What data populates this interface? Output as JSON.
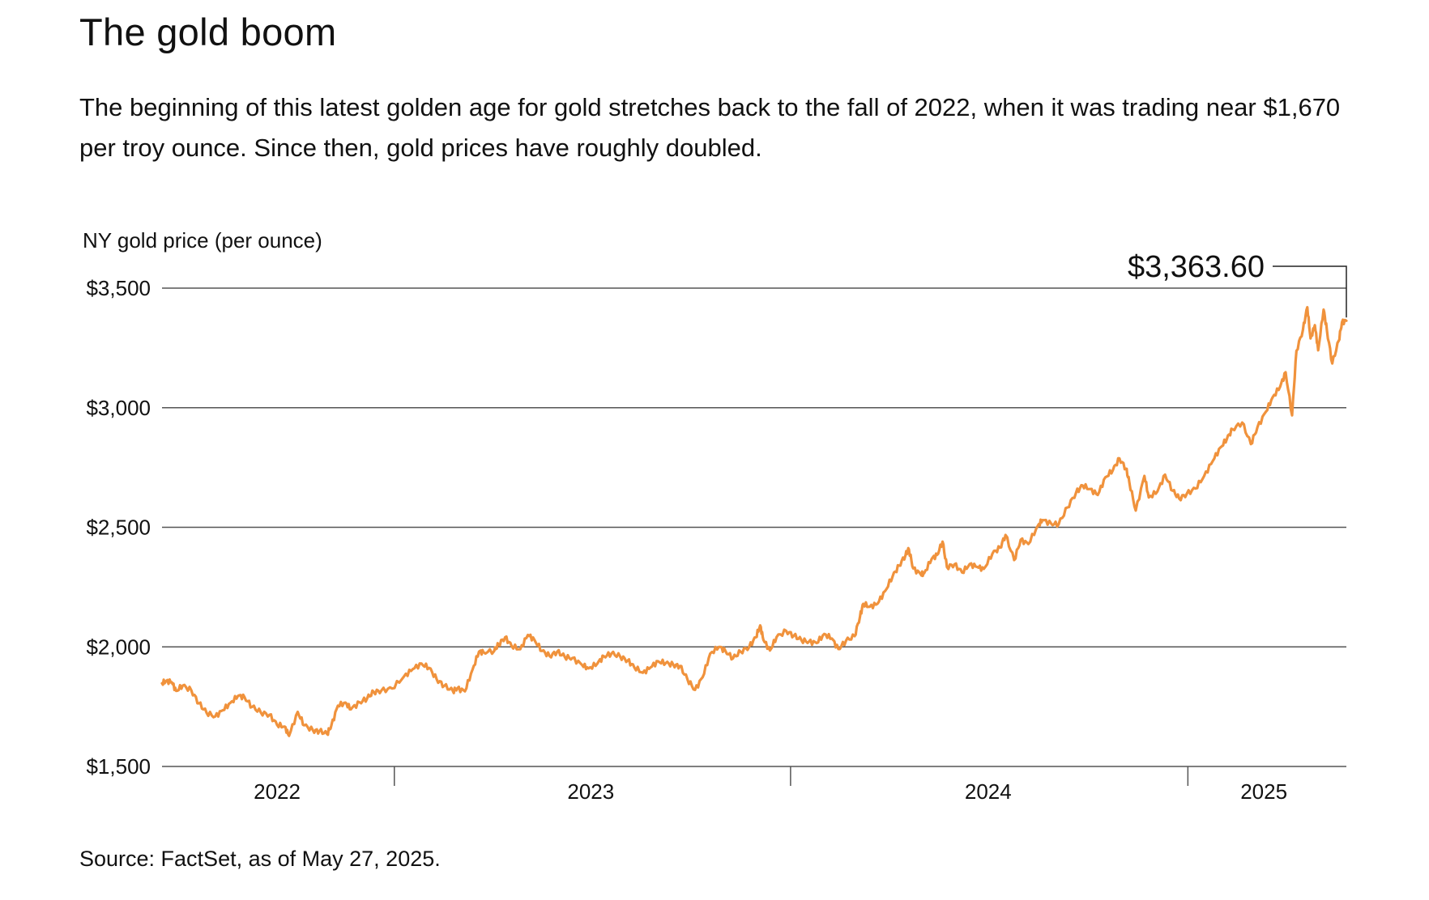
{
  "title": "The gold boom",
  "subtitle": "The beginning of this latest golden age for gold stretches back to the fall of 2022, when it was trading near $1,670 per troy ounce. Since then, gold prices have roughly doubled.",
  "source": "Source: FactSet, as of May 27, 2025.",
  "colors": {
    "line": "#F0923C",
    "grid": "#555555",
    "text": "#111111"
  },
  "chart_data": {
    "type": "line",
    "ylabel": "NY gold price (per ounce)",
    "ylim": [
      1500,
      3500
    ],
    "yticks": [
      {
        "value": 1500,
        "label": "$1,500"
      },
      {
        "value": 2000,
        "label": "$2,000"
      },
      {
        "value": 2500,
        "label": "$2,500"
      },
      {
        "value": 3000,
        "label": "$3,000"
      },
      {
        "value": 3500,
        "label": "$3,500"
      }
    ],
    "xlim": [
      "2022-06-01",
      "2025-05-27"
    ],
    "xticks": [
      {
        "label": "2022",
        "date": "2022-09-15"
      },
      {
        "label": "2023",
        "date": "2023-07-01"
      },
      {
        "label": "2024",
        "date": "2024-07-01"
      },
      {
        "label": "2025",
        "date": "2025-03-12"
      }
    ],
    "year_dividers": [
      "2023-01-01",
      "2024-01-01",
      "2025-01-01"
    ],
    "grid": true,
    "last_value_label": "$3,363.60",
    "series": [
      {
        "points": [
          [
            "2022-06-01",
            1848
          ],
          [
            "2022-06-05",
            1858
          ],
          [
            "2022-06-10",
            1852
          ],
          [
            "2022-06-14",
            1816
          ],
          [
            "2022-06-20",
            1838
          ],
          [
            "2022-06-28",
            1818
          ],
          [
            "2022-07-05",
            1764
          ],
          [
            "2022-07-12",
            1725
          ],
          [
            "2022-07-20",
            1709
          ],
          [
            "2022-07-27",
            1735
          ],
          [
            "2022-08-03",
            1766
          ],
          [
            "2022-08-10",
            1795
          ],
          [
            "2022-08-16",
            1790
          ],
          [
            "2022-08-23",
            1749
          ],
          [
            "2022-08-31",
            1726
          ],
          [
            "2022-09-08",
            1716
          ],
          [
            "2022-09-15",
            1674
          ],
          [
            "2022-09-22",
            1667
          ],
          [
            "2022-09-26",
            1628
          ],
          [
            "2022-10-04",
            1728
          ],
          [
            "2022-10-10",
            1672
          ],
          [
            "2022-10-18",
            1651
          ],
          [
            "2022-10-24",
            1648
          ],
          [
            "2022-10-31",
            1636
          ],
          [
            "2022-11-04",
            1671
          ],
          [
            "2022-11-10",
            1754
          ],
          [
            "2022-11-17",
            1767
          ],
          [
            "2022-11-22",
            1739
          ],
          [
            "2022-11-30",
            1768
          ],
          [
            "2022-12-07",
            1785
          ],
          [
            "2022-12-13",
            1812
          ],
          [
            "2022-12-20",
            1817
          ],
          [
            "2022-12-30",
            1826
          ],
          [
            "2023-01-10",
            1877
          ],
          [
            "2023-01-18",
            1907
          ],
          [
            "2023-01-26",
            1930
          ],
          [
            "2023-02-02",
            1912
          ],
          [
            "2023-02-09",
            1865
          ],
          [
            "2023-02-16",
            1837
          ],
          [
            "2023-02-24",
            1815
          ],
          [
            "2023-02-28",
            1827
          ],
          [
            "2023-03-07",
            1814
          ],
          [
            "2023-03-14",
            1905
          ],
          [
            "2023-03-20",
            1980
          ],
          [
            "2023-03-24",
            1978
          ],
          [
            "2023-04-03",
            1983
          ],
          [
            "2023-04-07",
            2010
          ],
          [
            "2023-04-13",
            2040
          ],
          [
            "2023-04-19",
            2004
          ],
          [
            "2023-04-27",
            1990
          ],
          [
            "2023-05-04",
            2050
          ],
          [
            "2023-05-10",
            2030
          ],
          [
            "2023-05-17",
            1983
          ],
          [
            "2023-05-24",
            1962
          ],
          [
            "2023-05-31",
            1980
          ],
          [
            "2023-06-07",
            1958
          ],
          [
            "2023-06-14",
            1953
          ],
          [
            "2023-06-23",
            1924
          ],
          [
            "2023-06-29",
            1910
          ],
          [
            "2023-07-07",
            1930
          ],
          [
            "2023-07-13",
            1961
          ],
          [
            "2023-07-20",
            1972
          ],
          [
            "2023-07-28",
            1960
          ],
          [
            "2023-08-04",
            1943
          ],
          [
            "2023-08-10",
            1915
          ],
          [
            "2023-08-18",
            1892
          ],
          [
            "2023-08-25",
            1914
          ],
          [
            "2023-09-01",
            1940
          ],
          [
            "2023-09-08",
            1932
          ],
          [
            "2023-09-15",
            1925
          ],
          [
            "2023-09-21",
            1920
          ],
          [
            "2023-09-28",
            1864
          ],
          [
            "2023-10-05",
            1820
          ],
          [
            "2023-10-12",
            1873
          ],
          [
            "2023-10-19",
            1972
          ],
          [
            "2023-10-27",
            2000
          ],
          [
            "2023-11-02",
            1983
          ],
          [
            "2023-11-09",
            1952
          ],
          [
            "2023-11-16",
            1980
          ],
          [
            "2023-11-24",
            2001
          ],
          [
            "2023-11-30",
            2040
          ],
          [
            "2023-12-04",
            2090
          ],
          [
            "2023-12-07",
            2029
          ],
          [
            "2023-12-13",
            1985
          ],
          [
            "2023-12-19",
            2040
          ],
          [
            "2023-12-28",
            2067
          ],
          [
            "2024-01-04",
            2047
          ],
          [
            "2024-01-11",
            2028
          ],
          [
            "2024-01-18",
            2022
          ],
          [
            "2024-01-25",
            2016
          ],
          [
            "2024-02-01",
            2054
          ],
          [
            "2024-02-08",
            2035
          ],
          [
            "2024-02-14",
            1991
          ],
          [
            "2024-02-21",
            2025
          ],
          [
            "2024-02-29",
            2045
          ],
          [
            "2024-03-05",
            2128
          ],
          [
            "2024-03-08",
            2180
          ],
          [
            "2024-03-14",
            2168
          ],
          [
            "2024-03-21",
            2180
          ],
          [
            "2024-03-28",
            2233
          ],
          [
            "2024-04-04",
            2295
          ],
          [
            "2024-04-10",
            2340
          ],
          [
            "2024-04-16",
            2385
          ],
          [
            "2024-04-19",
            2408
          ],
          [
            "2024-04-23",
            2328
          ],
          [
            "2024-04-30",
            2303
          ],
          [
            "2024-05-03",
            2307
          ],
          [
            "2024-05-10",
            2368
          ],
          [
            "2024-05-15",
            2385
          ],
          [
            "2024-05-20",
            2440
          ],
          [
            "2024-05-24",
            2334
          ],
          [
            "2024-05-31",
            2345
          ],
          [
            "2024-06-07",
            2311
          ],
          [
            "2024-06-14",
            2346
          ],
          [
            "2024-06-21",
            2334
          ],
          [
            "2024-06-27",
            2326
          ],
          [
            "2024-07-05",
            2390
          ],
          [
            "2024-07-12",
            2415
          ],
          [
            "2024-07-17",
            2468
          ],
          [
            "2024-07-25",
            2363
          ],
          [
            "2024-07-31",
            2448
          ],
          [
            "2024-08-07",
            2430
          ],
          [
            "2024-08-16",
            2508
          ],
          [
            "2024-08-20",
            2530
          ],
          [
            "2024-08-28",
            2516
          ],
          [
            "2024-09-04",
            2513
          ],
          [
            "2024-09-12",
            2583
          ],
          [
            "2024-09-20",
            2645
          ],
          [
            "2024-09-26",
            2675
          ],
          [
            "2024-10-03",
            2660
          ],
          [
            "2024-10-10",
            2635
          ],
          [
            "2024-10-17",
            2709
          ],
          [
            "2024-10-24",
            2740
          ],
          [
            "2024-10-30",
            2788
          ],
          [
            "2024-11-05",
            2745
          ],
          [
            "2024-11-08",
            2690
          ],
          [
            "2024-11-14",
            2570
          ],
          [
            "2024-11-22",
            2715
          ],
          [
            "2024-11-26",
            2625
          ],
          [
            "2024-12-04",
            2650
          ],
          [
            "2024-12-11",
            2720
          ],
          [
            "2024-12-18",
            2653
          ],
          [
            "2024-12-24",
            2620
          ],
          [
            "2024-12-31",
            2640
          ],
          [
            "2025-01-08",
            2662
          ],
          [
            "2025-01-16",
            2715
          ],
          [
            "2025-01-24",
            2778
          ],
          [
            "2025-01-31",
            2834
          ],
          [
            "2025-02-06",
            2870
          ],
          [
            "2025-02-11",
            2910
          ],
          [
            "2025-02-20",
            2938
          ],
          [
            "2025-02-28",
            2848
          ],
          [
            "2025-03-06",
            2917
          ],
          [
            "2025-03-14",
            2984
          ],
          [
            "2025-03-20",
            3043
          ],
          [
            "2025-03-27",
            3088
          ],
          [
            "2025-04-01",
            3148
          ],
          [
            "2025-04-07",
            2968
          ],
          [
            "2025-04-11",
            3238
          ],
          [
            "2025-04-17",
            3326
          ],
          [
            "2025-04-21",
            3420
          ],
          [
            "2025-04-24",
            3290
          ],
          [
            "2025-04-28",
            3345
          ],
          [
            "2025-05-01",
            3240
          ],
          [
            "2025-05-06",
            3410
          ],
          [
            "2025-05-09",
            3326
          ],
          [
            "2025-05-14",
            3185
          ],
          [
            "2025-05-20",
            3280
          ],
          [
            "2025-05-23",
            3358
          ],
          [
            "2025-05-27",
            3363.6
          ]
        ]
      }
    ]
  }
}
